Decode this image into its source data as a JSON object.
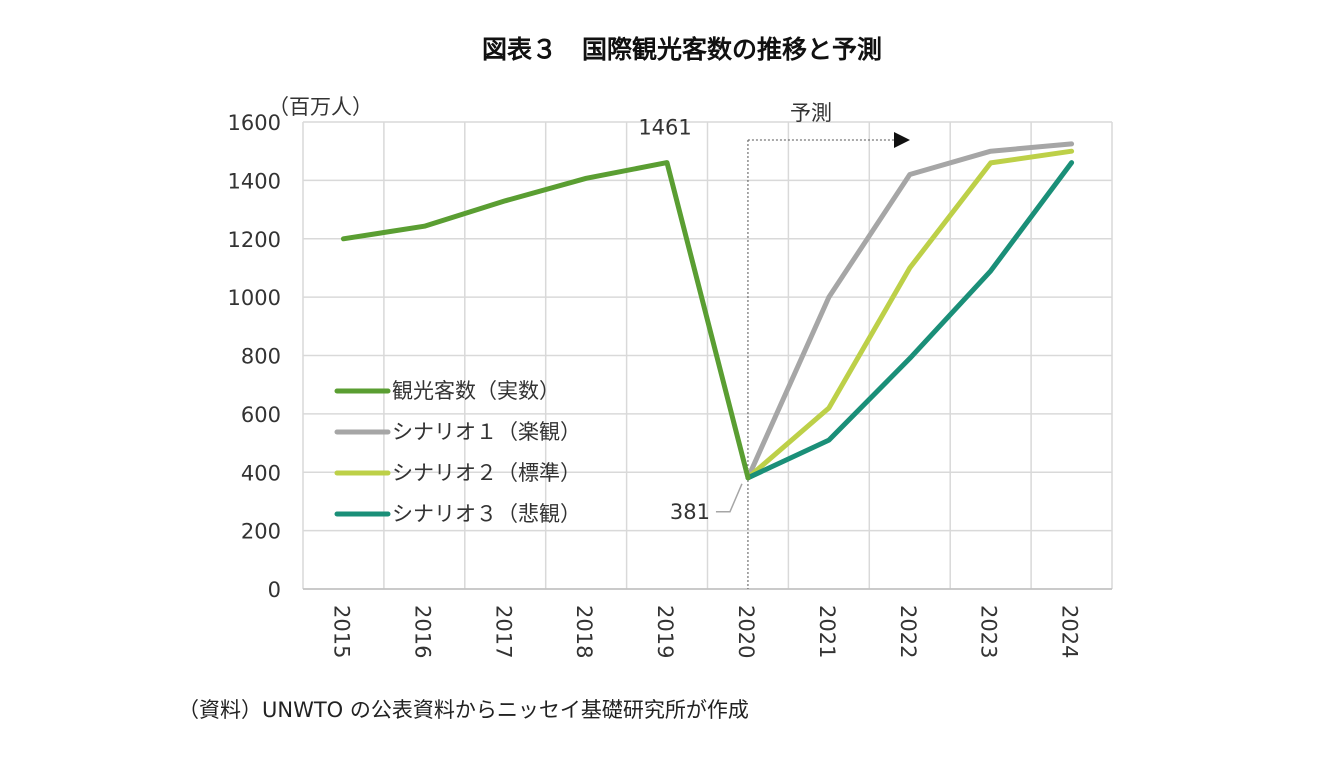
{
  "chart_data": {
    "type": "line",
    "title": "図表３　国際観光客数の推移と予測",
    "unit_label": "（百万人）",
    "ylim": [
      0,
      1600
    ],
    "yticks": [
      0,
      200,
      400,
      600,
      800,
      1000,
      1200,
      1400,
      1600
    ],
    "x": [
      "2015",
      "2016",
      "2017",
      "2018",
      "2019",
      "2020",
      "2021",
      "2022",
      "2023",
      "2024"
    ],
    "grid": true,
    "legend_position": "lower-left",
    "forecast_label": "予測",
    "forecast_start": "2020",
    "annotations": [
      {
        "label": "1461",
        "x": "2019",
        "y": 1461
      },
      {
        "label": "381",
        "x": "2020",
        "y": 381
      }
    ],
    "series": [
      {
        "name": "観光客数（実数）",
        "color": "#5a9e32",
        "values": [
          1200,
          1243,
          1330,
          1407,
          1461,
          381,
          null,
          null,
          null,
          null
        ]
      },
      {
        "name": "シナリオ１（楽観）",
        "color": "#a6a6a6",
        "values": [
          null,
          null,
          null,
          null,
          null,
          381,
          1000,
          1420,
          1500,
          1525
        ]
      },
      {
        "name": "シナリオ２（標準）",
        "color": "#bdd048",
        "values": [
          null,
          null,
          null,
          null,
          null,
          381,
          620,
          1100,
          1460,
          1500
        ]
      },
      {
        "name": "シナリオ３（悲観）",
        "color": "#1a8f78",
        "values": [
          null,
          null,
          null,
          null,
          null,
          381,
          510,
          790,
          1090,
          1461
        ]
      }
    ]
  },
  "source_note": "（資料）UNWTO の公表資料からニッセイ基礎研究所が作成"
}
